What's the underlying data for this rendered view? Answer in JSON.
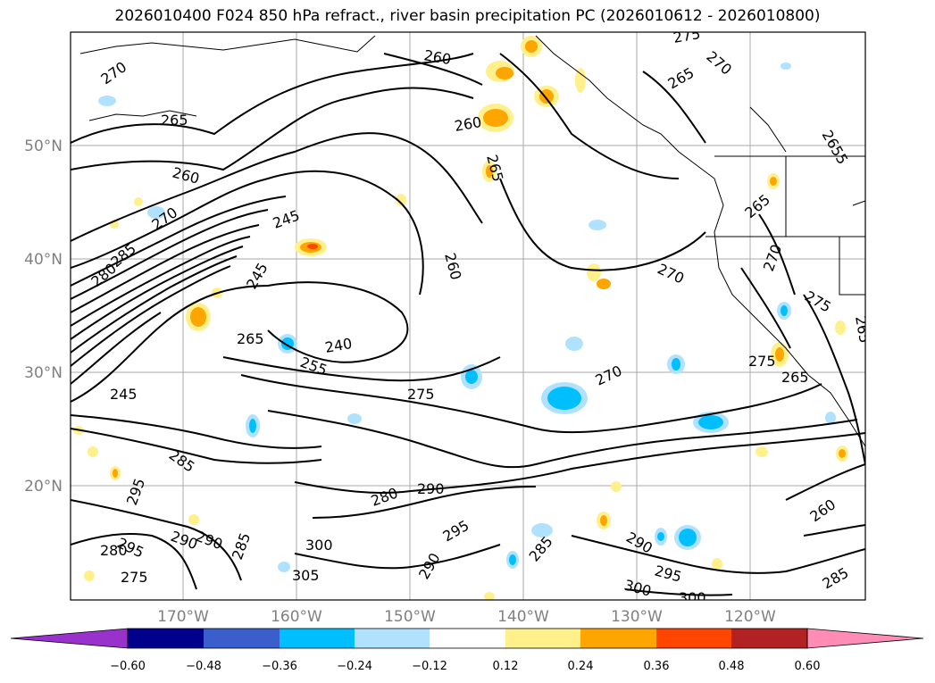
{
  "title": "2026010400 F024 850 hPa refract., river basin precipitation PC (2026010612 - 2026010800)",
  "latitude_labels": [
    "50°N",
    "40°N",
    "30°N",
    "20°N"
  ],
  "longitude_labels": [
    "170°W",
    "160°W",
    "150°W",
    "140°W",
    "130°W",
    "120°W"
  ],
  "colorbar": {
    "tick_labels": [
      "−0.60",
      "−0.48",
      "−0.36",
      "−0.24",
      "−0.12",
      "0.12",
      "0.24",
      "0.36",
      "0.48",
      "0.60"
    ],
    "colors": {
      "under": "#9932cc",
      "bins": [
        "#00008b",
        "#3a5fcd",
        "#00bfff",
        "#b0e2ff",
        "#ffffff",
        "#fff08c",
        "#ffa500",
        "#ff4500",
        "#b22222"
      ],
      "over": "#ff8cb4"
    }
  },
  "contour_labels": [
    "270",
    "265",
    "260",
    "275",
    "270",
    "265",
    "260",
    "265",
    "2655",
    "260",
    "270",
    "245",
    "285",
    "280",
    "245",
    "260",
    "270",
    "265",
    "270",
    "275",
    "265",
    "240",
    "255",
    "275",
    "275",
    "265",
    "245",
    "265",
    "270",
    "285",
    "295",
    "260",
    "280",
    "290",
    "290",
    "285",
    "300",
    "295",
    "295",
    "290",
    "285",
    "305",
    "275",
    "290",
    "300",
    "300",
    "295",
    "290",
    "285",
    "280"
  ]
}
